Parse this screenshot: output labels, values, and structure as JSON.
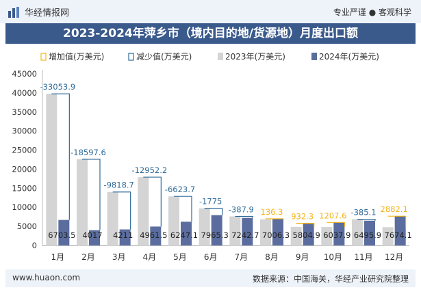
{
  "header": {
    "brand": "华经情报网",
    "slogan": "专业严谨 ● 客观科学"
  },
  "chart_data": {
    "type": "bar",
    "title": "2023-2024年萍乡市（境内目的地/货源地）月度出口额",
    "categories": [
      "1月",
      "2月",
      "3月",
      "4月",
      "5月",
      "6月",
      "7月",
      "8月",
      "9月",
      "10月",
      "11月",
      "12月"
    ],
    "series": [
      {
        "name": "2023年(万美元)",
        "values": [
          39757.4,
          22614.6,
          14029.8,
          17913.7,
          12870.8,
          9740.3,
          7630.6,
          6870.0,
          4872.6,
          4830.3,
          6881.0,
          4792.0
        ]
      },
      {
        "name": "2024年(万美元)",
        "values": [
          6703.5,
          4017,
          4211,
          4961.5,
          6247.1,
          7965.3,
          7242.7,
          7006.3,
          5804.9,
          6037.9,
          6495.9,
          7674.1
        ]
      }
    ],
    "change": {
      "increase_label": "增加值(万美元)",
      "decrease_label": "减少值(万美元)",
      "values": [
        -33053.9,
        -18597.6,
        -9818.7,
        -12952.2,
        -6623.7,
        -1775,
        -387.9,
        136.3,
        932.3,
        1207.6,
        -385.1,
        2882.1
      ],
      "labels": [
        "-33053.9",
        "-18597.6",
        "-9818.7",
        "-12952.2",
        "-6623.7",
        "-1775",
        "-387.9",
        "136.3",
        "932.3",
        "1207.6",
        "-385.1",
        "2882.1"
      ]
    },
    "bar_labels": [
      "6703.5",
      "4017",
      "4211",
      "4961.5",
      "6247.1",
      "7965.3",
      "7242.7",
      "7006.3",
      "5804.9",
      "6037.9",
      "6495.9",
      "7674.1"
    ],
    "ylim": [
      0,
      45000
    ],
    "yticks": [
      "0",
      "5000",
      "10000",
      "15000",
      "20000",
      "25000",
      "30000",
      "35000",
      "40000",
      "45000"
    ],
    "legend_position": "top",
    "colors": {
      "bar2023": "#d4d4d4",
      "bar2024": "#5b6d9e",
      "increase": "#f2b418",
      "decrease": "#2e6b99",
      "title_bg": "#3a5a8c"
    }
  },
  "footer": {
    "website": "www.huaon.com",
    "source": "数据来源：中国海关，华经产业研究院整理"
  }
}
